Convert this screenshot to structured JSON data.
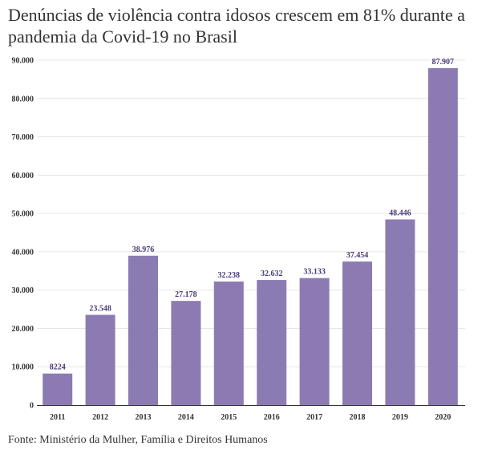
{
  "chart_data": {
    "type": "bar",
    "title": "Denúncias de violência contra idosos crescem em 81% durante a pandemia da Covid-19 no Brasil",
    "xlabel": "",
    "ylabel": "",
    "categories": [
      "2011",
      "2012",
      "2013",
      "2014",
      "2015",
      "2016",
      "2017",
      "2018",
      "2019",
      "2020"
    ],
    "values": [
      8224,
      23548,
      38976,
      27178,
      32238,
      32632,
      33133,
      37454,
      48446,
      87907
    ],
    "value_labels": [
      "8224",
      "23.548",
      "38.976",
      "27.178",
      "32.238",
      "32.632",
      "33.133",
      "37.454",
      "48.446",
      "87.907"
    ],
    "ylim": [
      0,
      90000
    ],
    "yticks": [
      0,
      10000,
      20000,
      30000,
      40000,
      50000,
      60000,
      70000,
      80000,
      90000
    ],
    "ytick_labels": [
      "0",
      "10.000",
      "20.000",
      "30.000",
      "40.000",
      "50.000",
      "60.000",
      "70.000",
      "80.000",
      "90.000"
    ],
    "grid": true,
    "bar_color": "#8c7bb3",
    "label_color": "#4b3a78",
    "source": "Fonte: Ministério da Mulher, Família e Direitos Humanos"
  }
}
